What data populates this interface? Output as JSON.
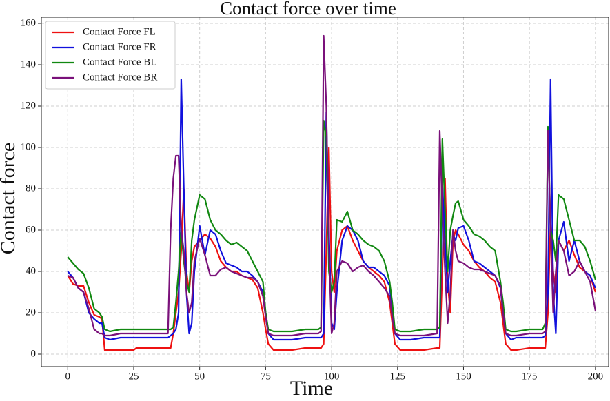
{
  "chart_data": {
    "type": "line",
    "title": "Contact force over time",
    "x_label": "Time",
    "y_label": "Contact force",
    "x": [
      0,
      2,
      4,
      6,
      8,
      10,
      12,
      13,
      14,
      16,
      20,
      25,
      26,
      30,
      35,
      38,
      39,
      40,
      41,
      42,
      43,
      44,
      45,
      46,
      47,
      48,
      50,
      52,
      54,
      56,
      58,
      60,
      62,
      64,
      66,
      68,
      70,
      72,
      74,
      75,
      76,
      78,
      80,
      85,
      90,
      95,
      96,
      97,
      98,
      99,
      100,
      101,
      102,
      104,
      106,
      108,
      110,
      112,
      114,
      116,
      118,
      120,
      122,
      123,
      124,
      126,
      130,
      135,
      140,
      141,
      142,
      143,
      144,
      145,
      146,
      147,
      148,
      150,
      152,
      154,
      156,
      158,
      160,
      162,
      164,
      165,
      166,
      168,
      170,
      175,
      180,
      181,
      182,
      183,
      184,
      185,
      186,
      188,
      190,
      192,
      194,
      196,
      198,
      200
    ],
    "series": [
      {
        "name": "Contact Force FL",
        "color": "#ee1111",
        "values": [
          38,
          34,
          33,
          33,
          25,
          19,
          18,
          17,
          2,
          2,
          2,
          2,
          3,
          3,
          3,
          3,
          3,
          10,
          20,
          30,
          50,
          80,
          40,
          30,
          45,
          52,
          55,
          58,
          56,
          52,
          45,
          42,
          40,
          40,
          38,
          37,
          36,
          32,
          20,
          12,
          5,
          2,
          2,
          2,
          3,
          3,
          3,
          5,
          50,
          100,
          40,
          30,
          50,
          60,
          62,
          55,
          50,
          45,
          42,
          40,
          38,
          35,
          25,
          15,
          5,
          2,
          2,
          2,
          3,
          3,
          40,
          85,
          35,
          20,
          55,
          60,
          58,
          53,
          50,
          45,
          42,
          40,
          37,
          35,
          25,
          15,
          5,
          2,
          2,
          3,
          3,
          3,
          20,
          64,
          40,
          30,
          55,
          50,
          55,
          48,
          42,
          40,
          38,
          30
        ]
      },
      {
        "name": "Contact Force FR",
        "color": "#1111dd",
        "values": [
          40,
          37,
          32,
          30,
          20,
          17,
          15,
          15,
          8,
          7,
          8,
          8,
          8,
          8,
          8,
          8,
          9,
          10,
          12,
          20,
          133,
          80,
          30,
          10,
          15,
          40,
          62,
          48,
          60,
          58,
          50,
          44,
          43,
          42,
          40,
          40,
          38,
          35,
          30,
          20,
          10,
          7,
          7,
          7,
          8,
          8,
          8,
          10,
          117,
          60,
          15,
          12,
          30,
          55,
          62,
          60,
          55,
          45,
          42,
          42,
          40,
          38,
          33,
          20,
          10,
          7,
          7,
          8,
          8,
          8,
          82,
          55,
          30,
          45,
          58,
          55,
          61,
          62,
          55,
          45,
          44,
          42,
          40,
          38,
          32,
          20,
          10,
          7,
          8,
          8,
          8,
          9,
          30,
          133,
          30,
          10,
          55,
          64,
          45,
          55,
          45,
          40,
          38,
          32
        ]
      },
      {
        "name": "Contact Force BL",
        "color": "#118811",
        "values": [
          47,
          44,
          41,
          39,
          32,
          22,
          20,
          18,
          12,
          11,
          12,
          12,
          12,
          12,
          12,
          12,
          12,
          13,
          25,
          40,
          60,
          45,
          35,
          30,
          55,
          65,
          77,
          75,
          65,
          60,
          58,
          55,
          53,
          54,
          52,
          50,
          45,
          40,
          35,
          20,
          12,
          11,
          11,
          11,
          12,
          12,
          13,
          113,
          105,
          40,
          30,
          35,
          65,
          64,
          69,
          60,
          58,
          55,
          53,
          52,
          50,
          45,
          35,
          25,
          12,
          11,
          11,
          12,
          12,
          13,
          104,
          70,
          40,
          60,
          67,
          73,
          74,
          65,
          62,
          58,
          57,
          55,
          52,
          50,
          35,
          25,
          12,
          11,
          11,
          12,
          12,
          15,
          110,
          60,
          55,
          45,
          77,
          75,
          65,
          55,
          55,
          52,
          45,
          36
        ]
      },
      {
        "name": "Contact Force BR",
        "color": "#7a117a",
        "values": [
          38,
          37,
          32,
          30,
          22,
          12,
          10,
          10,
          9,
          9,
          10,
          10,
          10,
          10,
          10,
          10,
          60,
          85,
          96,
          96,
          60,
          50,
          30,
          20,
          25,
          45,
          56,
          48,
          38,
          38,
          41,
          42,
          40,
          39,
          38,
          37,
          37,
          35,
          28,
          18,
          10,
          9,
          9,
          9,
          10,
          10,
          11,
          154,
          120,
          50,
          10,
          15,
          40,
          45,
          44,
          40,
          42,
          43,
          40,
          38,
          35,
          32,
          28,
          18,
          10,
          9,
          9,
          9,
          10,
          108,
          70,
          40,
          15,
          30,
          60,
          50,
          45,
          44,
          42,
          41,
          41,
          40,
          39,
          38,
          33,
          20,
          10,
          9,
          9,
          10,
          10,
          11,
          108,
          60,
          20,
          40,
          55,
          50,
          38,
          40,
          45,
          40,
          35,
          21
        ]
      }
    ],
    "xlim": [
      -10,
      205
    ],
    "ylim": [
      -6,
      163
    ],
    "xticks": [
      0,
      25,
      50,
      75,
      100,
      125,
      150,
      175,
      200
    ],
    "yticks": [
      0,
      20,
      40,
      60,
      80,
      100,
      120,
      140,
      160
    ],
    "grid": true,
    "legend": "upper-left"
  }
}
